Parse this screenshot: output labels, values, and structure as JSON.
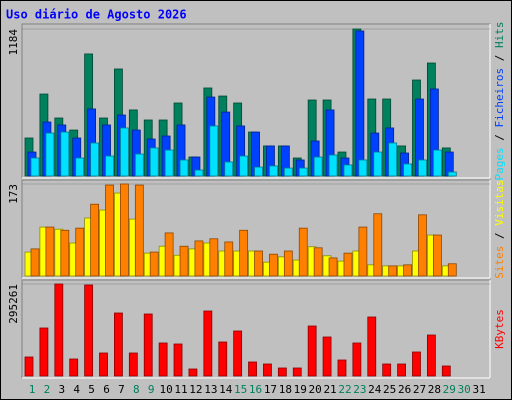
{
  "chart_data": {
    "type": "bar",
    "title": "Uso diário de Agosto 2026",
    "categories": [
      "1",
      "2",
      "3",
      "4",
      "5",
      "6",
      "7",
      "8",
      "9",
      "10",
      "11",
      "12",
      "13",
      "14",
      "15",
      "16",
      "17",
      "18",
      "19",
      "20",
      "21",
      "22",
      "23",
      "24",
      "25",
      "26",
      "27",
      "28",
      "29",
      "30",
      "31"
    ],
    "category_colors": [
      "#00805c",
      "#00805c",
      "#000000",
      "#000000",
      "#000000",
      "#000000",
      "#000000",
      "#00805c",
      "#00805c",
      "#000000",
      "#000000",
      "#000000",
      "#000000",
      "#000000",
      "#00805c",
      "#00805c",
      "#000000",
      "#000000",
      "#000000",
      "#000000",
      "#000000",
      "#00805c",
      "#00805c",
      "#000000",
      "#000000",
      "#000000",
      "#000000",
      "#000000",
      "#00805c",
      "#00805c",
      "#000000"
    ],
    "legend_separator": " / ",
    "panels": [
      {
        "ylim": [
          0,
          1184
        ],
        "yticks": [
          1184
        ],
        "series": [
          {
            "name": "Hits",
            "color": "#00805c",
            "values": [
              306,
              660,
              467,
              370,
              983,
              467,
              862,
              532,
              451,
              451,
              588,
              153,
              709,
              644,
              588,
              354,
              242,
              242,
              145,
              612,
              612,
              193,
              1184,
              620,
              620,
              242,
              773,
              910,
              226,
              null,
              null
            ]
          },
          {
            "name": "Ficheiros",
            "color": "#0040ff",
            "values": [
              193,
              435,
              411,
              306,
              540,
              411,
              491,
              370,
              298,
              322,
              411,
              153,
              636,
              515,
              403,
              354,
              242,
              242,
              129,
              282,
              532,
              145,
              1168,
              346,
              387,
              185,
              620,
              701,
              193,
              null,
              null
            ]
          },
          {
            "name": "Pages",
            "color": "#00e0ff",
            "values": [
              145,
              346,
              354,
              145,
              266,
              161,
              387,
              177,
              226,
              209,
              129,
              48,
              403,
              113,
              161,
              72,
              81,
              64,
              64,
              153,
              169,
              89,
              129,
              193,
              266,
              97,
              129,
              209,
              32,
              null,
              null
            ]
          }
        ]
      },
      {
        "ylim": [
          0,
          173
        ],
        "yticks": [
          173
        ],
        "series": [
          {
            "name": "Visitas",
            "color": "#ffff00",
            "values": [
              45,
              92,
              88,
              62,
              109,
              124,
              156,
              107,
              43,
              56,
              39,
              51,
              62,
              47,
              47,
              47,
              26,
              36,
              30,
              55,
              38,
              28,
              47,
              21,
              19,
              19,
              47,
              77,
              19,
              null,
              null
            ]
          },
          {
            "name": "Sites",
            "color": "#ff8000",
            "values": [
              51,
              92,
              86,
              90,
              135,
              171,
              173,
              171,
              45,
              81,
              56,
              66,
              70,
              64,
              86,
              47,
              41,
              47,
              90,
              53,
              34,
              43,
              92,
              117,
              19,
              21,
              115,
              77,
              23,
              null,
              null
            ]
          }
        ]
      },
      {
        "ylim": [
          0,
          295261
        ],
        "yticks": [
          295261
        ],
        "series": [
          {
            "name": "KBytes",
            "color": "#ff0000",
            "values": [
              60971,
              154032,
              295261,
              54553,
              292019,
              73807,
              202167,
              73807,
              198958,
              105897,
              102688,
              22463,
              208585,
              109106,
              144405,
              44926,
              38508,
              25672,
              25672,
              160450,
              125151,
              51344,
              105897,
              189331,
              38508,
              38508,
              77016,
              131569,
              32090,
              null,
              null
            ]
          }
        ]
      }
    ]
  }
}
